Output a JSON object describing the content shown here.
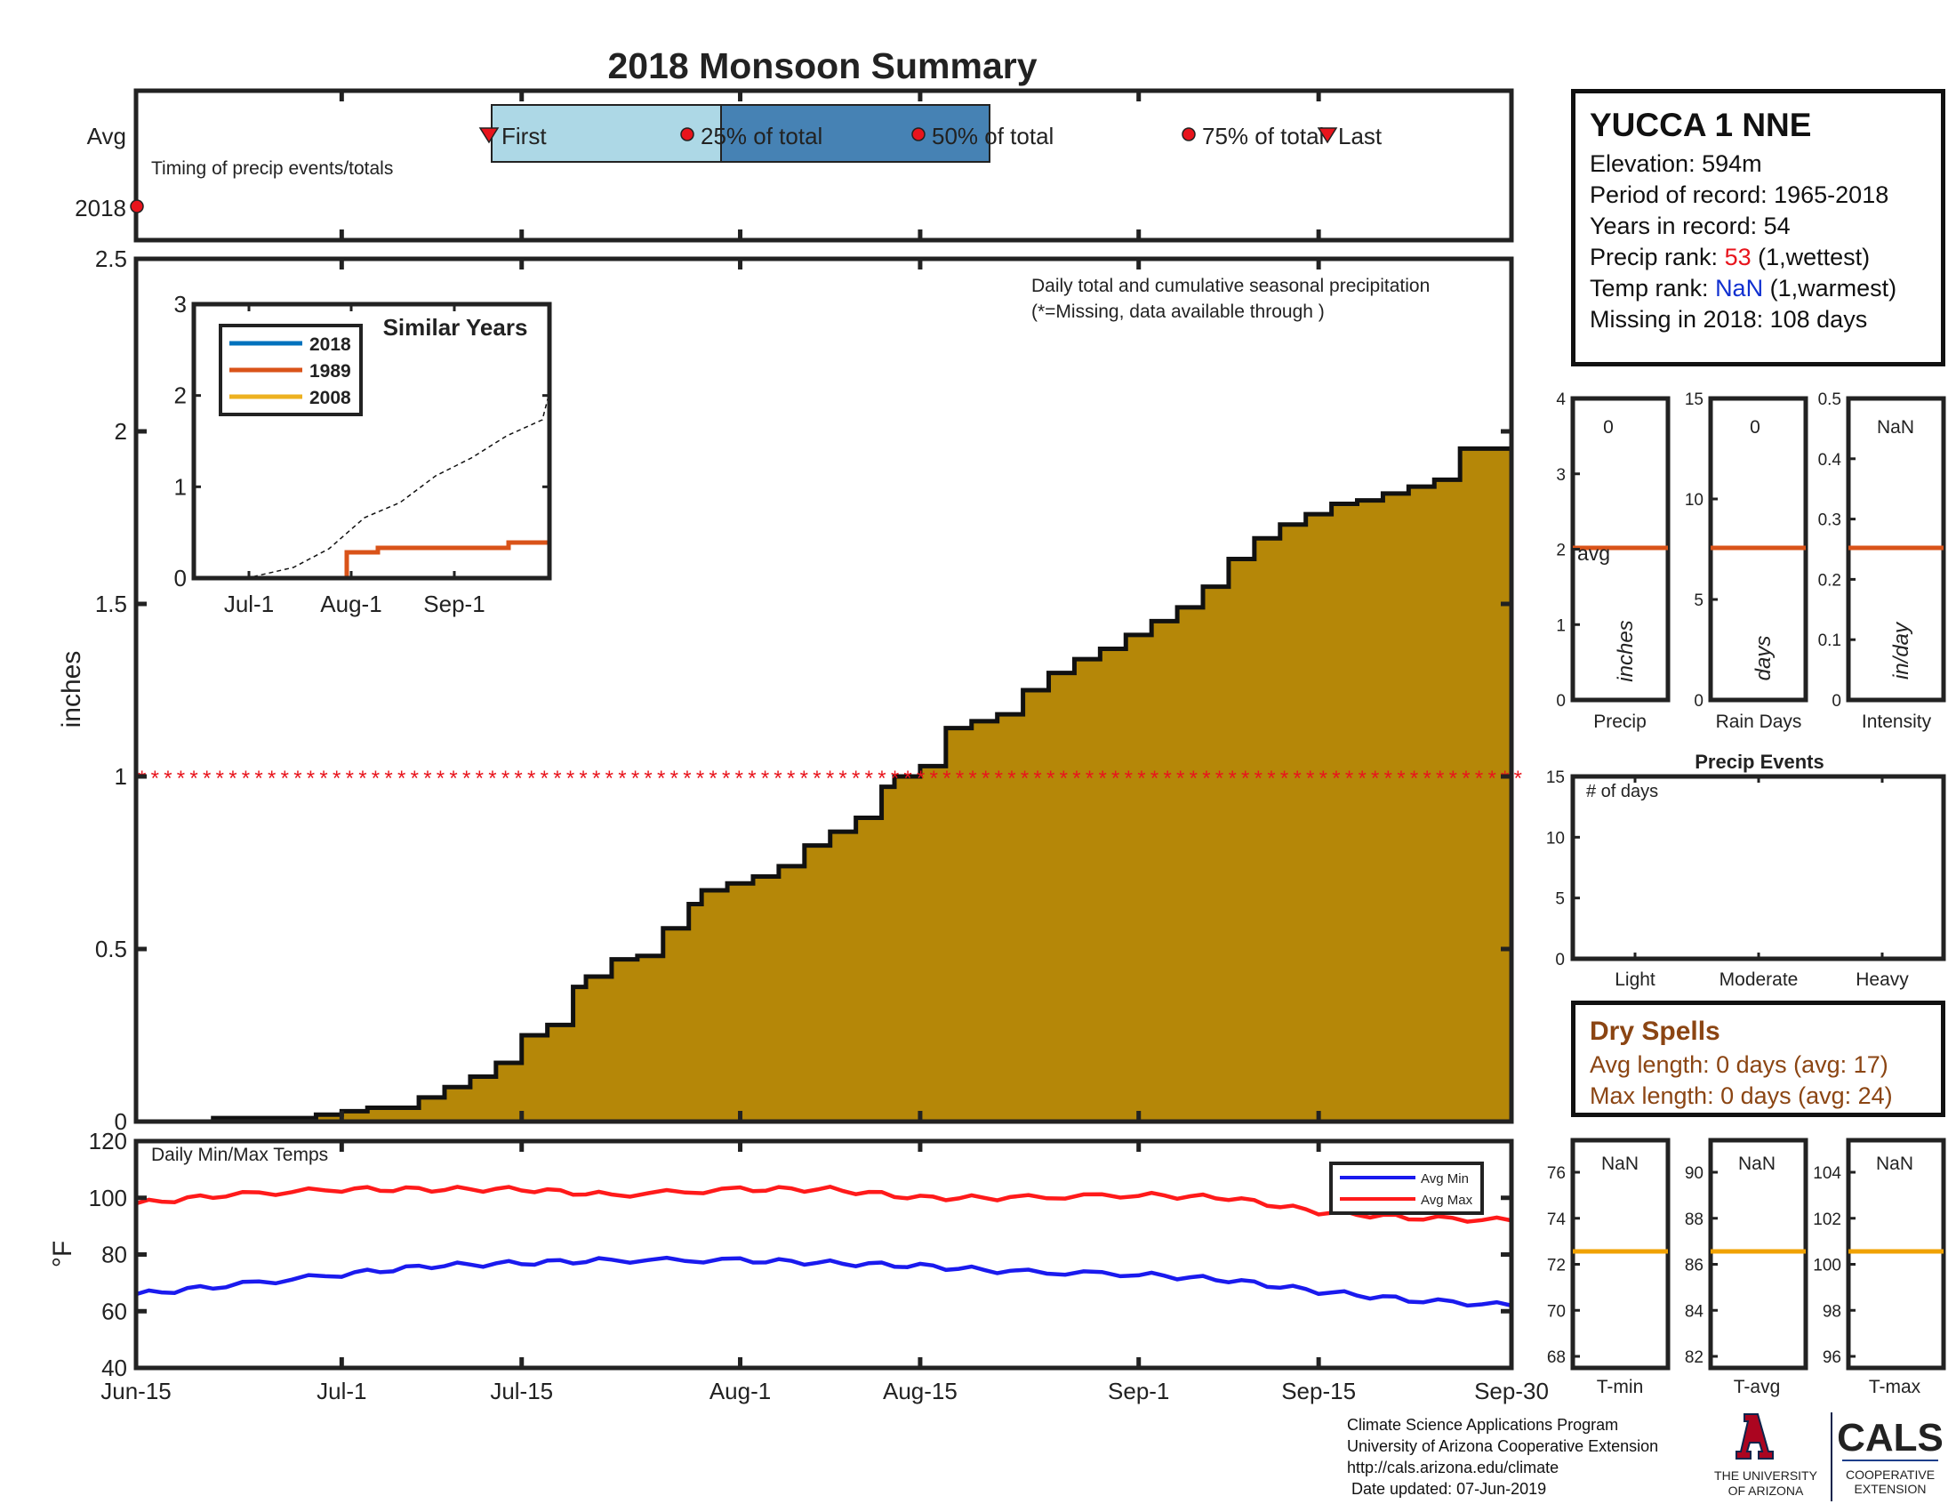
{
  "title": "2018 Monsoon Summary",
  "colors": {
    "title": "#e8141c",
    "fill": "#b58708",
    "missing": "#e8141c",
    "avg_line": "#d95319",
    "temp_avg": "#f0a202",
    "max": "#ff1a1a",
    "min": "#1a1aee",
    "blue_rank": "#1030d0",
    "brown": "#8b4513",
    "light_blue": "#add8e6",
    "steel_blue": "#4682b4"
  },
  "timing": {
    "label": "Timing of precip events/totals",
    "rows": [
      "Avg",
      "2018"
    ],
    "first": "First",
    "last": "Last",
    "q25": "25% of total",
    "q50": "50% of total",
    "q75": "75% of total"
  },
  "info": {
    "station": "YUCCA 1 NNE",
    "elevation": "Elevation: 594m",
    "period": "Period of record: 1965-2018",
    "years": "Years in record: 54",
    "precip_rank_prefix": "Precip rank: ",
    "precip_rank_value": "53",
    "precip_rank_suffix": " (1,wettest)",
    "temp_rank_prefix": "Temp rank: ",
    "temp_rank_value": "NaN",
    "temp_rank_suffix": " (1,warmest)",
    "missing": "Missing in 2018: 108 days"
  },
  "main_chart": {
    "ylabel": "inches",
    "yticks": [
      "0",
      "0.5",
      "1",
      "1.5",
      "2",
      "2.5"
    ],
    "xticks": [
      "Jun-15",
      "Jul-1",
      "Jul-15",
      "Aug-1",
      "Aug-15",
      "Sep-1",
      "Sep-15",
      "Sep-30"
    ],
    "note1": "Daily total and cumulative seasonal precipitation",
    "note2": "(*=Missing, data available through )"
  },
  "inset": {
    "title": "Similar Years",
    "yticks": [
      "0",
      "1",
      "2",
      "3"
    ],
    "xticks": [
      "Jul-1",
      "Aug-1",
      "Sep-1"
    ],
    "legend": [
      "2018",
      "1989",
      "2008"
    ],
    "legend_colors": [
      "#0072bd",
      "#d95319",
      "#edb120"
    ]
  },
  "temps": {
    "label": "Daily Min/Max Temps",
    "ylabel": "°F",
    "yticks": [
      "40",
      "60",
      "80",
      "100",
      "120"
    ],
    "legend_min": "Avg Min",
    "legend_max": "Avg Max"
  },
  "small_bars": [
    {
      "value": "0",
      "unit": "inches",
      "label": "Precip",
      "ticks": [
        "0",
        "1",
        "2",
        "3",
        "4"
      ],
      "avg_label": "avg"
    },
    {
      "value": "0",
      "unit": "days",
      "label": "Rain Days",
      "ticks": [
        "0",
        "5",
        "10",
        "15"
      ]
    },
    {
      "value": "NaN",
      "unit": "in/day",
      "label": "Intensity",
      "ticks": [
        "0",
        "0.1",
        "0.2",
        "0.3",
        "0.4",
        "0.5"
      ]
    }
  ],
  "events": {
    "title": "Precip Events",
    "label": "# of days",
    "yticks": [
      "0",
      "5",
      "10",
      "15"
    ],
    "categories": [
      "Light",
      "Moderate",
      "Heavy"
    ]
  },
  "dry_spells": {
    "title": "Dry Spells",
    "avg": "Avg length: 0 days (avg: 17)",
    "max": "Max length: 0 days (avg: 24)"
  },
  "temp_bars": [
    {
      "value": "NaN",
      "label": "T-min",
      "ticks": [
        "68",
        "70",
        "72",
        "74",
        "76"
      ]
    },
    {
      "value": "NaN",
      "label": "T-avg",
      "ticks": [
        "82",
        "84",
        "86",
        "88",
        "90"
      ]
    },
    {
      "value": "NaN",
      "label": "T-max",
      "ticks": [
        "96",
        "98",
        "100",
        "102",
        "104"
      ]
    }
  ],
  "footer": {
    "line1": "Climate Science Applications Program",
    "line2": "University of Arizona Cooperative Extension",
    "line3": "http://cals.arizona.edu/climate",
    "line4": " Date updated: 07-Jun-2019",
    "ua_line1": "THE UNIVERSITY",
    "ua_line2": "OF ARIZONA",
    "cals": "CALS",
    "cals_sub1": "COOPERATIVE",
    "cals_sub2": "EXTENSION"
  },
  "chart_data": [
    {
      "type": "area",
      "title": "Daily total and cumulative seasonal precipitation",
      "xlabel": "",
      "ylabel": "inches",
      "ylim": [
        0,
        2.5
      ],
      "x_range": [
        "Jun-15",
        "Sep-30"
      ],
      "series": [
        {
          "name": "",
          "x": [
            "Jun-15",
            "Jun-21",
            "Jun-27",
            "Jun-29",
            "Jul-1",
            "Jul-3",
            "Jul-7",
            "Jul-9",
            "Jul-11",
            "Jul-13",
            "Jul-15",
            "Jul-17",
            "Jul-19",
            "Jul-20",
            "Jul-22",
            "Jul-24",
            "Jul-26",
            "Jul-28",
            "Jul-29",
            "Jul-31",
            "Aug-2",
            "Aug-4",
            "Aug-6",
            "Aug-8",
            "Aug-10",
            "Aug-12",
            "Aug-13",
            "Aug-15",
            "Aug-17",
            "Aug-19",
            "Aug-21",
            "Aug-23",
            "Aug-25",
            "Aug-27",
            "Aug-29",
            "Aug-31",
            "Sep-2",
            "Sep-4",
            "Sep-6",
            "Sep-8",
            "Sep-10",
            "Sep-12",
            "Sep-14",
            "Sep-16",
            "Sep-18",
            "Sep-20",
            "Sep-22",
            "Sep-24",
            "Sep-26",
            "Sep-30"
          ],
          "values": [
            0,
            0.01,
            0.01,
            0.02,
            0.03,
            0.04,
            0.07,
            0.1,
            0.13,
            0.17,
            0.25,
            0.28,
            0.39,
            0.42,
            0.47,
            0.48,
            0.56,
            0.63,
            0.67,
            0.69,
            0.71,
            0.74,
            0.8,
            0.84,
            0.88,
            0.97,
            1.0,
            1.03,
            1.14,
            1.16,
            1.18,
            1.25,
            1.3,
            1.34,
            1.37,
            1.41,
            1.45,
            1.49,
            1.55,
            1.63,
            1.69,
            1.73,
            1.76,
            1.79,
            1.8,
            1.82,
            1.84,
            1.86,
            1.95,
            2.01
          ]
        },
        {
          "name": "",
          "type": "missing-markers",
          "value": 1.0
        }
      ]
    },
    {
      "type": "line",
      "title": "Similar Years",
      "ylim": [
        0,
        3
      ],
      "x": [
        "Jun-15",
        "Jul-1",
        "Jul-15",
        "Aug-1",
        "Aug-15",
        "Sep-1",
        "Sep-15",
        "Sep-30"
      ],
      "series": [
        {
          "name": "2018",
          "values": [
            0,
            0,
            0,
            0,
            0,
            0,
            0,
            0
          ]
        },
        {
          "name": "1989",
          "values": [
            0.02,
            0.03,
            0.04,
            0.25,
            0.3,
            0.33,
            0.35,
            0.42
          ]
        },
        {
          "name": "2008",
          "values": [
            0,
            0,
            0,
            0,
            0,
            0,
            0,
            0
          ]
        },
        {
          "name": "",
          "style": "dashed",
          "values": [
            0,
            0.03,
            0.4,
            0.7,
            1.1,
            1.5,
            1.8,
            2.1
          ]
        }
      ]
    },
    {
      "type": "line",
      "title": "Daily Min/Max Temps",
      "ylabel": "°F",
      "ylim": [
        40,
        120
      ],
      "x": [
        "Jun-15",
        "Jun-22",
        "Jul-1",
        "Jul-8",
        "Jul-15",
        "Jul-22",
        "Aug-1",
        "Aug-8",
        "Aug-15",
        "Aug-22",
        "Sep-1",
        "Sep-8",
        "Sep-15",
        "Sep-22",
        "Sep-30"
      ],
      "series": [
        {
          "name": "Avg Max",
          "values": [
            98,
            101,
            103,
            103,
            103,
            101,
            103,
            103,
            100,
            100,
            101,
            100,
            95,
            93,
            92
          ]
        },
        {
          "name": "Avg Min",
          "values": [
            66,
            69,
            73,
            76,
            77,
            78,
            78,
            77,
            76,
            74,
            73,
            71,
            67,
            64,
            62
          ]
        }
      ]
    },
    {
      "type": "bar",
      "title": "Precip Events",
      "categories": [
        "Light",
        "Moderate",
        "Heavy"
      ],
      "values": [
        0,
        0,
        0
      ],
      "ylim": [
        0,
        15
      ]
    }
  ]
}
